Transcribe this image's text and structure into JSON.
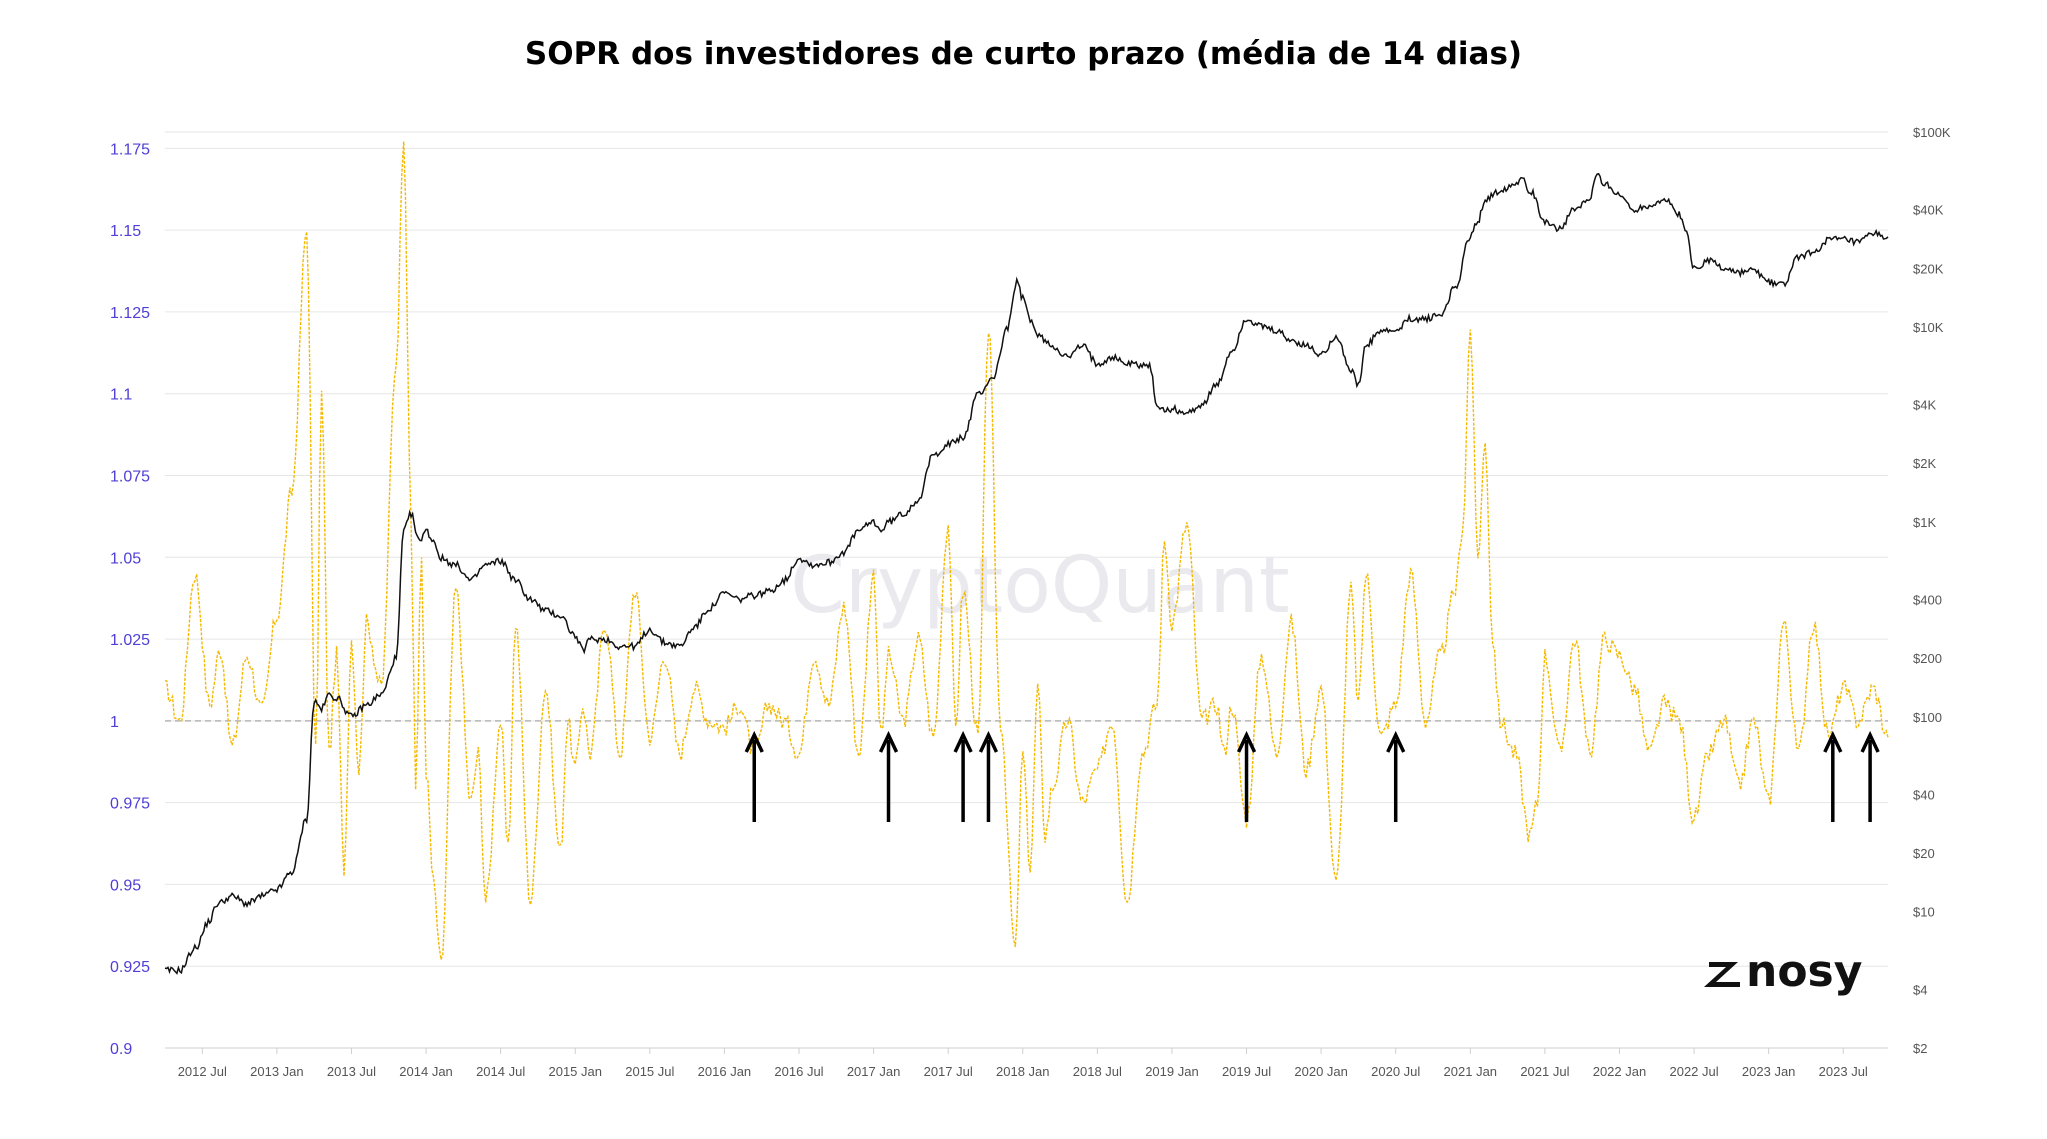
{
  "chart_data": {
    "type": "line",
    "title": "SOPR dos investidores de curto prazo (média de 14 dias)",
    "watermark": "CryptoQuant",
    "logo": "nosy",
    "xlabel": "",
    "ylabel": "",
    "x_ticks": [
      "2012 Jul",
      "2013 Jan",
      "2013 Jul",
      "2014 Jan",
      "2014 Jul",
      "2015 Jan",
      "2015 Jul",
      "2016 Jan",
      "2016 Jul",
      "2017 Jan",
      "2017 Jul",
      "2018 Jan",
      "2018 Jul",
      "2019 Jan",
      "2019 Jul",
      "2020 Jan",
      "2020 Jul",
      "2021 Jan",
      "2021 Jul",
      "2022 Jan",
      "2022 Jul",
      "2023 Jan",
      "2023 Jul"
    ],
    "y_left": {
      "ticks": [
        "0.9",
        "0.925",
        "0.95",
        "0.975",
        "1",
        "1.025",
        "1.05",
        "1.075",
        "1.1",
        "1.125",
        "1.15",
        "1.175"
      ],
      "ylim": [
        0.9,
        1.18
      ]
    },
    "y_right": {
      "scale": "log",
      "ticks": [
        "$2",
        "$4",
        "$10",
        "$20",
        "$40",
        "$100",
        "$200",
        "$400",
        "$1K",
        "$2K",
        "$4K",
        "$10K",
        "$20K",
        "$40K",
        "$100K"
      ],
      "ylim": [
        2,
        100000
      ]
    },
    "reference_line": 1,
    "grid": true,
    "arrows_at": [
      2016.2,
      2017.1,
      2017.6,
      2017.77,
      2019.5,
      2020.5,
      2023.43,
      2023.68
    ],
    "colors": {
      "sopr": "#f5b800",
      "price": "#111111",
      "left_ticks": "#4f3fd6",
      "grid": "#e6e6e6"
    },
    "series": [
      {
        "name": "STH SOPR (14d MA)",
        "axis": "left",
        "x": [
          2012.25,
          2012.35,
          2012.45,
          2012.55,
          2012.62,
          2012.7,
          2012.8,
          2012.9,
          2013.0,
          2013.1,
          2013.2,
          2013.26,
          2013.3,
          2013.35,
          2013.4,
          2013.45,
          2013.5,
          2013.55,
          2013.6,
          2013.7,
          2013.8,
          2013.85,
          2013.9,
          2013.93,
          2013.97,
          2014.0,
          2014.05,
          2014.1,
          2014.2,
          2014.3,
          2014.35,
          2014.4,
          2014.5,
          2014.55,
          2014.6,
          2014.7,
          2014.8,
          2014.9,
          2014.95,
          2015.0,
          2015.05,
          2015.1,
          2015.2,
          2015.3,
          2015.4,
          2015.5,
          2015.6,
          2015.7,
          2015.8,
          2015.9,
          2016.0,
          2016.1,
          2016.2,
          2016.3,
          2016.4,
          2016.5,
          2016.6,
          2016.7,
          2016.8,
          2016.9,
          2017.0,
          2017.05,
          2017.1,
          2017.2,
          2017.3,
          2017.4,
          2017.5,
          2017.55,
          2017.6,
          2017.7,
          2017.77,
          2017.85,
          2017.95,
          2018.0,
          2018.05,
          2018.1,
          2018.15,
          2018.2,
          2018.3,
          2018.4,
          2018.5,
          2018.6,
          2018.7,
          2018.8,
          2018.9,
          2018.95,
          2019.0,
          2019.1,
          2019.2,
          2019.3,
          2019.35,
          2019.4,
          2019.5,
          2019.6,
          2019.7,
          2019.8,
          2019.9,
          2020.0,
          2020.1,
          2020.2,
          2020.25,
          2020.3,
          2020.4,
          2020.5,
          2020.6,
          2020.7,
          2020.8,
          2020.9,
          2020.95,
          2021.0,
          2021.05,
          2021.1,
          2021.15,
          2021.2,
          2021.3,
          2021.4,
          2021.45,
          2021.5,
          2021.6,
          2021.7,
          2021.8,
          2021.9,
          2022.0,
          2022.1,
          2022.2,
          2022.3,
          2022.4,
          2022.5,
          2022.6,
          2022.7,
          2022.8,
          2022.9,
          2023.0,
          2023.1,
          2023.2,
          2023.3,
          2023.4,
          2023.5,
          2023.6,
          2023.7,
          2023.8
        ],
        "values": [
          1.01,
          1.0,
          1.045,
          1.005,
          1.022,
          0.992,
          1.02,
          1.003,
          1.032,
          1.07,
          1.15,
          0.99,
          1.1,
          0.99,
          1.02,
          0.955,
          1.025,
          0.985,
          1.03,
          1.01,
          1.11,
          1.18,
          1.06,
          0.98,
          1.05,
          0.985,
          0.95,
          0.925,
          1.04,
          0.975,
          0.99,
          0.945,
          1.0,
          0.96,
          1.03,
          0.945,
          1.01,
          0.96,
          1.0,
          0.985,
          1.005,
          0.99,
          1.03,
          0.99,
          1.04,
          0.995,
          1.02,
          0.99,
          1.01,
          1.0,
          0.998,
          1.005,
          0.99,
          1.005,
          1.0,
          0.99,
          1.02,
          1.005,
          1.035,
          0.99,
          1.045,
          0.995,
          1.02,
          1.0,
          1.025,
          0.995,
          1.06,
          0.998,
          1.04,
          0.995,
          1.12,
          1.0,
          0.93,
          0.99,
          0.955,
          1.01,
          0.965,
          0.98,
          1.0,
          0.975,
          0.985,
          1.0,
          0.945,
          0.99,
          1.005,
          1.055,
          1.03,
          1.06,
          1.0,
          1.005,
          0.99,
          1.005,
          0.97,
          1.02,
          0.99,
          1.03,
          0.985,
          1.01,
          0.95,
          1.04,
          1.005,
          1.045,
          0.995,
          1.005,
          1.045,
          1.0,
          1.02,
          1.04,
          1.06,
          1.12,
          1.05,
          1.085,
          1.025,
          1.0,
          0.99,
          0.965,
          0.975,
          1.02,
          0.99,
          1.025,
          0.99,
          1.025,
          1.02,
          1.01,
          0.99,
          1.005,
          1.0,
          0.97,
          0.99,
          1.0,
          0.98,
          1.0,
          0.975,
          1.03,
          0.99,
          1.03,
          0.995,
          1.01,
          1.0,
          1.01,
          0.995
        ]
      },
      {
        "name": "BTC price",
        "axis": "right",
        "x": [
          2012.25,
          2012.35,
          2012.45,
          2012.55,
          2012.6,
          2012.7,
          2012.8,
          2012.9,
          2013.0,
          2013.1,
          2013.2,
          2013.25,
          2013.3,
          2013.35,
          2013.4,
          2013.5,
          2013.6,
          2013.7,
          2013.8,
          2013.85,
          2013.9,
          2013.95,
          2014.0,
          2014.05,
          2014.1,
          2014.2,
          2014.3,
          2014.4,
          2014.5,
          2014.6,
          2014.7,
          2014.8,
          2014.9,
          2015.0,
          2015.05,
          2015.1,
          2015.2,
          2015.3,
          2015.4,
          2015.5,
          2015.6,
          2015.7,
          2015.8,
          2015.9,
          2016.0,
          2016.1,
          2016.2,
          2016.3,
          2016.4,
          2016.5,
          2016.6,
          2016.7,
          2016.8,
          2016.9,
          2017.0,
          2017.05,
          2017.1,
          2017.2,
          2017.3,
          2017.4,
          2017.5,
          2017.6,
          2017.7,
          2017.8,
          2017.9,
          2017.96,
          2018.0,
          2018.05,
          2018.1,
          2018.2,
          2018.3,
          2018.4,
          2018.5,
          2018.6,
          2018.7,
          2018.8,
          2018.85,
          2018.9,
          2018.95,
          2019.0,
          2019.1,
          2019.2,
          2019.3,
          2019.4,
          2019.5,
          2019.6,
          2019.7,
          2019.8,
          2019.9,
          2020.0,
          2020.1,
          2020.2,
          2020.25,
          2020.3,
          2020.4,
          2020.5,
          2020.6,
          2020.7,
          2020.8,
          2020.9,
          2021.0,
          2021.05,
          2021.1,
          2021.2,
          2021.3,
          2021.35,
          2021.4,
          2021.5,
          2021.6,
          2021.7,
          2021.8,
          2021.85,
          2021.9,
          2022.0,
          2022.1,
          2022.2,
          2022.3,
          2022.4,
          2022.45,
          2022.5,
          2022.6,
          2022.7,
          2022.8,
          2022.9,
          2023.0,
          2023.1,
          2023.2,
          2023.3,
          2023.4,
          2023.5,
          2023.6,
          2023.7,
          2023.8
        ],
        "values": [
          5,
          5,
          6.5,
          9,
          11,
          12,
          11,
          12,
          13,
          16,
          30,
          120,
          110,
          130,
          125,
          100,
          115,
          130,
          200,
          900,
          1100,
          800,
          900,
          800,
          650,
          600,
          500,
          600,
          630,
          500,
          400,
          350,
          330,
          260,
          220,
          250,
          250,
          230,
          230,
          280,
          240,
          230,
          290,
          360,
          430,
          400,
          420,
          440,
          500,
          650,
          600,
          620,
          700,
          900,
          1000,
          900,
          1000,
          1100,
          1300,
          2200,
          2500,
          2700,
          4500,
          5500,
          10000,
          17000,
          14000,
          11000,
          9000,
          8000,
          7000,
          8000,
          6500,
          7000,
          6500,
          6400,
          6300,
          4000,
          3700,
          3800,
          3600,
          4000,
          5000,
          7500,
          11000,
          10000,
          9500,
          8500,
          8000,
          7200,
          9000,
          6000,
          5000,
          8000,
          9500,
          9500,
          11000,
          11000,
          11500,
          16000,
          29000,
          35000,
          45000,
          50000,
          55000,
          58000,
          50000,
          35000,
          32000,
          40000,
          45000,
          60000,
          55000,
          47000,
          40000,
          42000,
          45000,
          38000,
          30000,
          20000,
          22000,
          20000,
          19000,
          19500,
          17000,
          16500,
          23000,
          24000,
          28000,
          28000,
          27000,
          30000,
          29000
        ]
      }
    ]
  }
}
